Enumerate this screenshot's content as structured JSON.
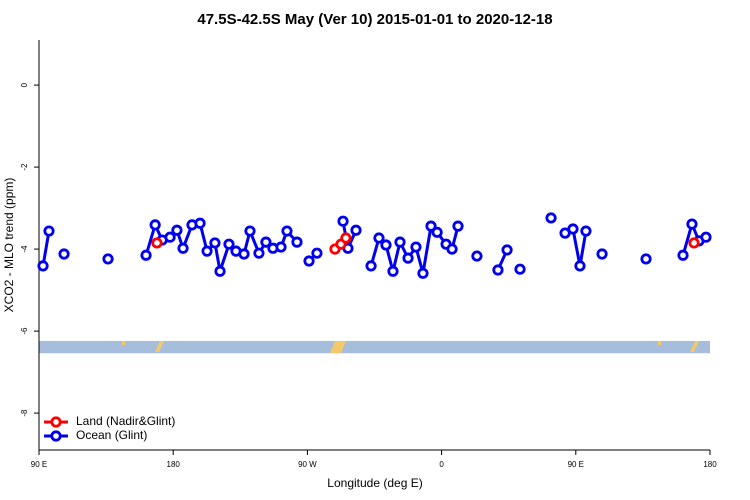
{
  "chart_data": {
    "type": "line",
    "title": "47.5S-42.5S May (Ver 10)   2015-01-01 to 2020-12-18",
    "xlabel": "Longitude (deg E)",
    "ylabel": "XCO2 - MLO trend (ppm)",
    "xlim": [
      90,
      540
    ],
    "ylim": [
      -8.9,
      1.1
    ],
    "xticks": [
      {
        "value": 90,
        "label": "90 E"
      },
      180,
      {
        "value": 270,
        "label": "90 W"
      },
      {
        "value": 360,
        "label": "0"
      },
      {
        "value": 450,
        "label": "90 E"
      },
      {
        "value": 540,
        "label": "180"
      }
    ],
    "yticks": [
      0,
      -2,
      -4,
      -6,
      -8
    ],
    "band": {
      "values": [
        -6.54,
        -6.24
      ],
      "color": "#a6bddb"
    },
    "legend": "bottom-left",
    "series": [
      {
        "name": "Ocean (Glint)",
        "color": "#0000ee",
        "x": [
          92.7,
          96.7,
          null,
          106.8,
          null,
          136.3,
          null,
          161.8,
          167.9,
          172.6,
          177.9,
          182.5,
          186.6,
          192.6,
          198.0,
          202.7,
          208.0,
          211.4,
          217.4,
          222.1,
          227.5,
          231.5,
          237.5,
          242.2,
          246.9,
          252.3,
          256.3,
          263.0,
          null,
          271.1,
          276.4,
          null,
          293.9,
          297.2,
          302.6,
          null,
          312.7,
          318.0,
          322.7,
          327.4,
          332.1,
          337.5,
          342.8,
          347.5,
          352.9,
          357.0,
          363.0,
          367.0,
          371.0,
          null,
          383.7,
          null,
          397.8,
          403.9,
          null,
          412.6,
          null,
          433.4,
          null,
          442.8,
          448.1,
          452.8,
          456.8,
          null,
          467.6,
          null,
          497.1,
          null,
          521.9,
          527.9,
          532.6,
          537.3
        ],
        "values": [
          -4.41,
          -3.56,
          null,
          -4.12,
          null,
          -4.24,
          null,
          -4.15,
          -3.41,
          -3.78,
          -3.71,
          -3.54,
          -3.98,
          -3.41,
          -3.37,
          -4.05,
          -3.85,
          -4.54,
          -3.88,
          -4.05,
          -4.12,
          -3.56,
          -4.1,
          -3.83,
          -3.98,
          -3.95,
          -3.56,
          -3.83,
          null,
          -4.29,
          -4.1,
          null,
          -3.32,
          -3.98,
          -3.54,
          null,
          -4.41,
          -3.73,
          -3.9,
          -4.54,
          -3.83,
          -4.22,
          -3.95,
          -4.59,
          -3.44,
          -3.59,
          -3.88,
          -4.0,
          -3.44,
          null,
          -4.17,
          null,
          -4.51,
          -4.02,
          null,
          -4.49,
          null,
          -3.24,
          null,
          -3.61,
          -3.51,
          -4.41,
          -3.56,
          null,
          -4.12,
          null,
          -4.24,
          null,
          -4.15,
          -3.39,
          -3.8,
          -3.71
        ]
      },
      {
        "name": "Land (Nadir&Glint)",
        "color": "#ff0000",
        "x": [
          169.1,
          null,
          288.5,
          292.5,
          295.8,
          null,
          529.3
        ],
        "values": [
          -3.85,
          null,
          -4.0,
          -3.88,
          -3.73,
          null,
          -3.85
        ]
      }
    ]
  }
}
